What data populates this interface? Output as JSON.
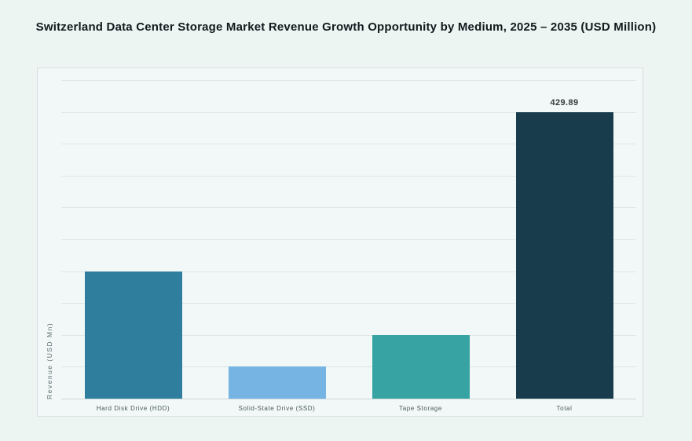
{
  "title": "Switzerland Data Center Storage Market Revenue Growth Opportunity by Medium, 2025 – 2035 (USD Million)",
  "colors": {
    "page_background": "#ecf5f2",
    "panel_background": "#f2f8f7",
    "panel_border": "#d6dee0",
    "gridline": "#dde7e6",
    "axis_line": "#ccd8d8",
    "title_text": "#121a1d",
    "label_text": "#4a595c"
  },
  "chart_data": {
    "type": "bar",
    "title": "Switzerland Data Center Storage Market Revenue Growth Opportunity by Medium, 2025 – 2035 (USD Million)",
    "xlabel": "",
    "ylabel": "Revenue (USD Mn)",
    "categories": [
      "Hard Disk Drive (HDD)",
      "Solid-State Drive (SSD)",
      "Tape Storage",
      "Total"
    ],
    "values": [
      191.1,
      47.8,
      95.5,
      429.89
    ],
    "value_labels": [
      "",
      "",
      "",
      "429.89"
    ],
    "values_estimated_from_gridlines": [
      true,
      true,
      true,
      false
    ],
    "bar_colors": [
      "#2f7e9e",
      "#76b4e4",
      "#37a3a2",
      "#183c4c"
    ],
    "ylim": [
      0,
      477.7
    ],
    "gridline_count": 10,
    "grid": "horizontal",
    "y_tick_labels_visible": false,
    "legend": "none"
  }
}
